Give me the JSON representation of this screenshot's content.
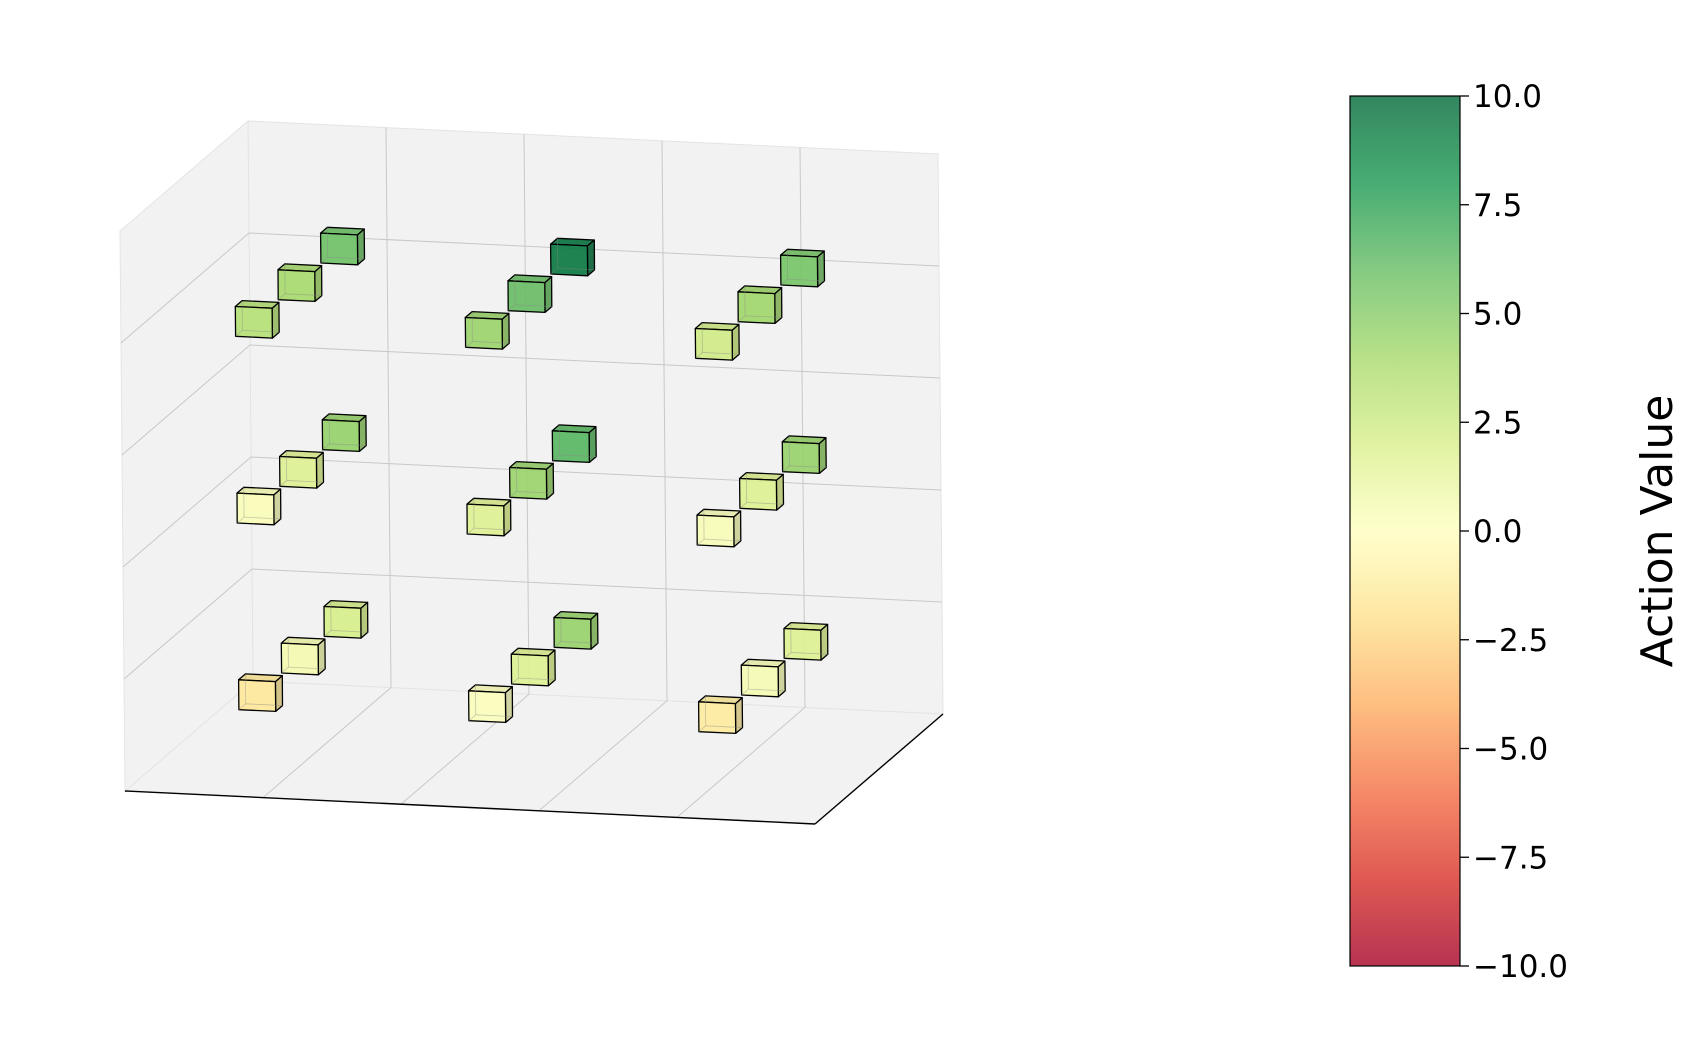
{
  "chart_data": {
    "type": "3d-voxel",
    "title": "",
    "grid": {
      "x_count": 3,
      "y_count": 3,
      "z_count": 3,
      "note_order": "values[z][y][x]; z=0 bottom layer, y=0 front row, x=0 left column"
    },
    "values": [
      [
        [
          -1.5,
          0.2,
          -1.3
        ],
        [
          0.6,
          1.8,
          0.5
        ],
        [
          2.1,
          4.5,
          1.8
        ]
      ],
      [
        [
          0.3,
          1.8,
          0.4
        ],
        [
          1.8,
          4.4,
          1.8
        ],
        [
          4.6,
          6.4,
          4.5
        ]
      ],
      [
        [
          3.4,
          4.4,
          2.4
        ],
        [
          4.0,
          6.0,
          4.2
        ],
        [
          5.8,
          9.4,
          5.5
        ]
      ]
    ],
    "colorbar": {
      "label": "Action Value",
      "min": -10.0,
      "max": 10.0,
      "ticks": [
        "10.0",
        "7.5",
        "5.0",
        "2.5",
        "0.0",
        "−2.5",
        "−5.0",
        "−7.5",
        "−10.0"
      ],
      "colormap": "RdYlGn",
      "alpha": 0.8
    },
    "colors": {
      "pane": "#f2f2f2",
      "pane_edge": "#e4e4e4",
      "axis_line": "#000000",
      "grid_line": "#c8c8c8",
      "edge": "#000000"
    }
  }
}
